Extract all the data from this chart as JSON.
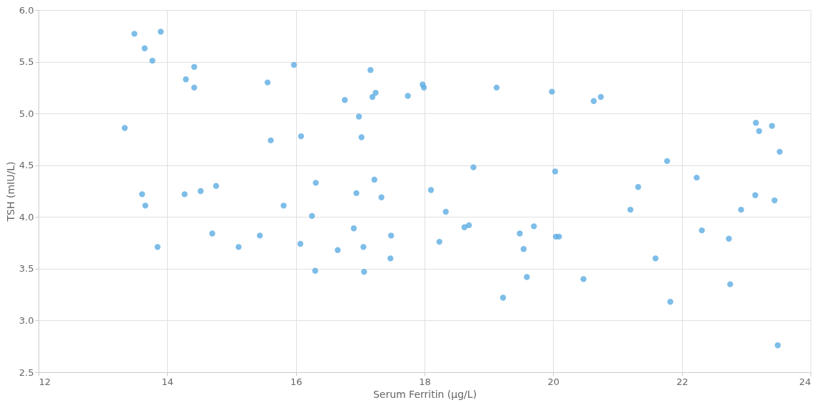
{
  "chart_data": {
    "type": "scatter",
    "xlabel": "Serum Ferritin (µg/L)",
    "ylabel": "TSH (mIU/L)",
    "xlim": [
      12,
      24
    ],
    "xticks": [
      12,
      14,
      16,
      18,
      20,
      22,
      24
    ],
    "ylim": [
      2.5,
      6.0
    ],
    "yticks": [
      {
        "value": 2.5,
        "label": "2.5"
      },
      {
        "value": 3,
        "label": "3.0"
      },
      {
        "value": 3.5,
        "label": "3.5"
      },
      {
        "value": 4,
        "label": "4.0"
      },
      {
        "value": 4.5,
        "label": "4.5"
      },
      {
        "value": 5,
        "label": "5.0"
      },
      {
        "value": 5.5,
        "label": "5.5"
      },
      {
        "value": 6,
        "label": "6.0"
      }
    ],
    "grid": true,
    "marker": "circle",
    "series": [
      {
        "color": "#5dade2",
        "x": [
          13.49,
          13.9,
          13.65,
          13.77,
          13.34,
          13.61,
          13.66,
          13.85,
          14.29,
          14.42,
          14.42,
          14.27,
          14.52,
          14.76,
          14.7,
          15.11,
          15.44,
          15.56,
          15.61,
          15.81,
          15.97,
          16.08,
          16.07,
          16.25,
          16.31,
          16.3,
          16.65,
          16.76,
          16.9,
          16.94,
          16.98,
          17.02,
          17.05,
          17.06,
          17.16,
          17.19,
          17.24,
          17.22,
          17.33,
          17.48,
          17.47,
          17.74,
          17.97,
          17.99,
          18.1,
          18.23,
          18.33,
          18.62,
          18.69,
          18.76,
          19.12,
          19.22,
          19.48,
          19.54,
          19.59,
          19.7,
          19.98,
          20.03,
          20.04,
          20.09,
          20.47,
          20.63,
          20.74,
          21.2,
          21.32,
          21.59,
          21.77,
          21.82,
          22.23,
          22.31,
          22.73,
          22.75,
          22.92,
          23.14,
          23.15,
          23.2,
          23.4,
          23.44,
          23.52,
          23.49
        ],
        "values": [
          5.77,
          5.79,
          5.63,
          5.51,
          4.86,
          4.22,
          4.11,
          3.71,
          5.33,
          5.45,
          5.25,
          4.22,
          4.25,
          4.3,
          3.84,
          3.71,
          3.82,
          5.3,
          4.74,
          4.11,
          5.47,
          4.78,
          3.74,
          4.01,
          4.33,
          3.48,
          3.68,
          5.13,
          3.89,
          4.23,
          4.97,
          4.77,
          3.71,
          3.47,
          5.42,
          5.16,
          5.2,
          4.36,
          4.19,
          3.82,
          3.6,
          5.17,
          5.28,
          5.25,
          4.26,
          3.76,
          4.05,
          3.9,
          3.92,
          4.48,
          5.25,
          3.22,
          3.84,
          3.69,
          3.42,
          3.91,
          5.21,
          4.44,
          3.81,
          3.81,
          3.4,
          5.12,
          5.16,
          4.07,
          4.29,
          3.6,
          4.54,
          3.18,
          4.38,
          3.87,
          3.79,
          3.35,
          4.07,
          4.21,
          4.91,
          4.83,
          4.88,
          4.16,
          4.63,
          2.76
        ]
      }
    ]
  }
}
